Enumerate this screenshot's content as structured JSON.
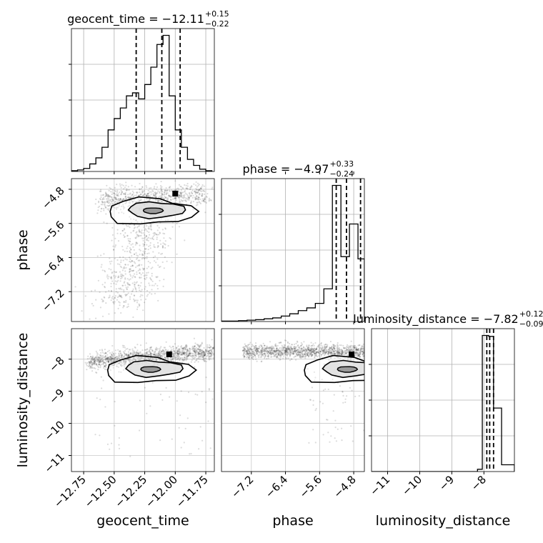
{
  "chart_data": {
    "type": "corner",
    "parameters": [
      "geocent_time",
      "phase",
      "luminosity_distance"
    ],
    "titles": [
      {
        "prefix": "geocent_time = ",
        "value": "−12.11",
        "plus": "+0.15",
        "minus": "−0.22"
      },
      {
        "prefix": "phase = ",
        "value": "−4.97",
        "plus": "+0.33",
        "minus": "−0.24"
      },
      {
        "prefix": "luminosity_distance = ",
        "value": "−7.82",
        "plus": "+0.12",
        "minus": "−0.09"
      }
    ],
    "axes": {
      "geocent_time": {
        "range": [
          -12.85,
          -11.68
        ],
        "ticks": [
          -12.75,
          -12.5,
          -12.25,
          -12.0,
          -11.75
        ],
        "tick_labels": [
          "−12.75",
          "−12.50",
          "−12.25",
          "−12.00",
          "−11.75"
        ]
      },
      "phase": {
        "range": [
          -7.9,
          -4.55
        ],
        "ticks": [
          -7.2,
          -6.4,
          -5.6,
          -4.8
        ],
        "tick_labels": [
          "−7.2",
          "−6.4",
          "−5.6",
          "−4.8"
        ]
      },
      "luminosity_distance": {
        "range": [
          -11.5,
          -7.05
        ],
        "ticks": [
          -11,
          -10,
          -9,
          -8
        ],
        "tick_labels": [
          "−11",
          "−10",
          "−9",
          "−8"
        ]
      }
    },
    "histograms": [
      {
        "param": "geocent_time",
        "bin_edges": [
          -12.85,
          -12.8,
          -12.75,
          -12.7,
          -12.65,
          -12.6,
          -12.55,
          -12.5,
          -12.45,
          -12.4,
          -12.35,
          -12.3,
          -12.25,
          -12.2,
          -12.15,
          -12.1,
          -12.05,
          -12.0,
          -11.95,
          -11.9,
          -11.85,
          -11.8,
          -11.75,
          -11.7
        ],
        "counts": [
          1,
          2,
          4,
          10,
          18,
          32,
          55,
          70,
          84,
          100,
          104,
          96,
          115,
          138,
          168,
          180,
          100,
          55,
          32,
          16,
          8,
          3,
          1
        ],
        "quantile_lines": [
          -12.32,
          -12.11,
          -11.96
        ]
      },
      {
        "param": "phase",
        "bin_edges": [
          -7.9,
          -7.7,
          -7.5,
          -7.3,
          -7.1,
          -6.9,
          -6.7,
          -6.5,
          -6.3,
          -6.1,
          -5.9,
          -5.7,
          -5.5,
          -5.3,
          -5.1,
          -4.9,
          -4.7,
          -4.55
        ],
        "counts": [
          1,
          1,
          2,
          3,
          4,
          6,
          8,
          12,
          17,
          24,
          30,
          40,
          72,
          300,
          143,
          215,
          138
        ],
        "quantile_lines": [
          -5.21,
          -4.97,
          -4.64
        ]
      },
      {
        "param": "luminosity_distance",
        "bin_edges": [
          -11.5,
          -8.2,
          -8.05,
          -7.85,
          -7.7,
          -7.45,
          -7.05
        ],
        "counts": [
          0,
          5,
          300,
          298,
          140,
          15
        ],
        "quantile_lines": [
          -7.91,
          -7.82,
          -7.7
        ]
      }
    ],
    "scatter": [
      {
        "x": "geocent_time",
        "y": "phase",
        "center": [
          -12.0,
          -4.9
        ]
      },
      {
        "x": "geocent_time",
        "y": "luminosity_distance",
        "center": [
          -12.05,
          -7.85
        ]
      },
      {
        "x": "phase",
        "y": "luminosity_distance",
        "center": [
          -4.85,
          -7.85
        ]
      }
    ]
  }
}
